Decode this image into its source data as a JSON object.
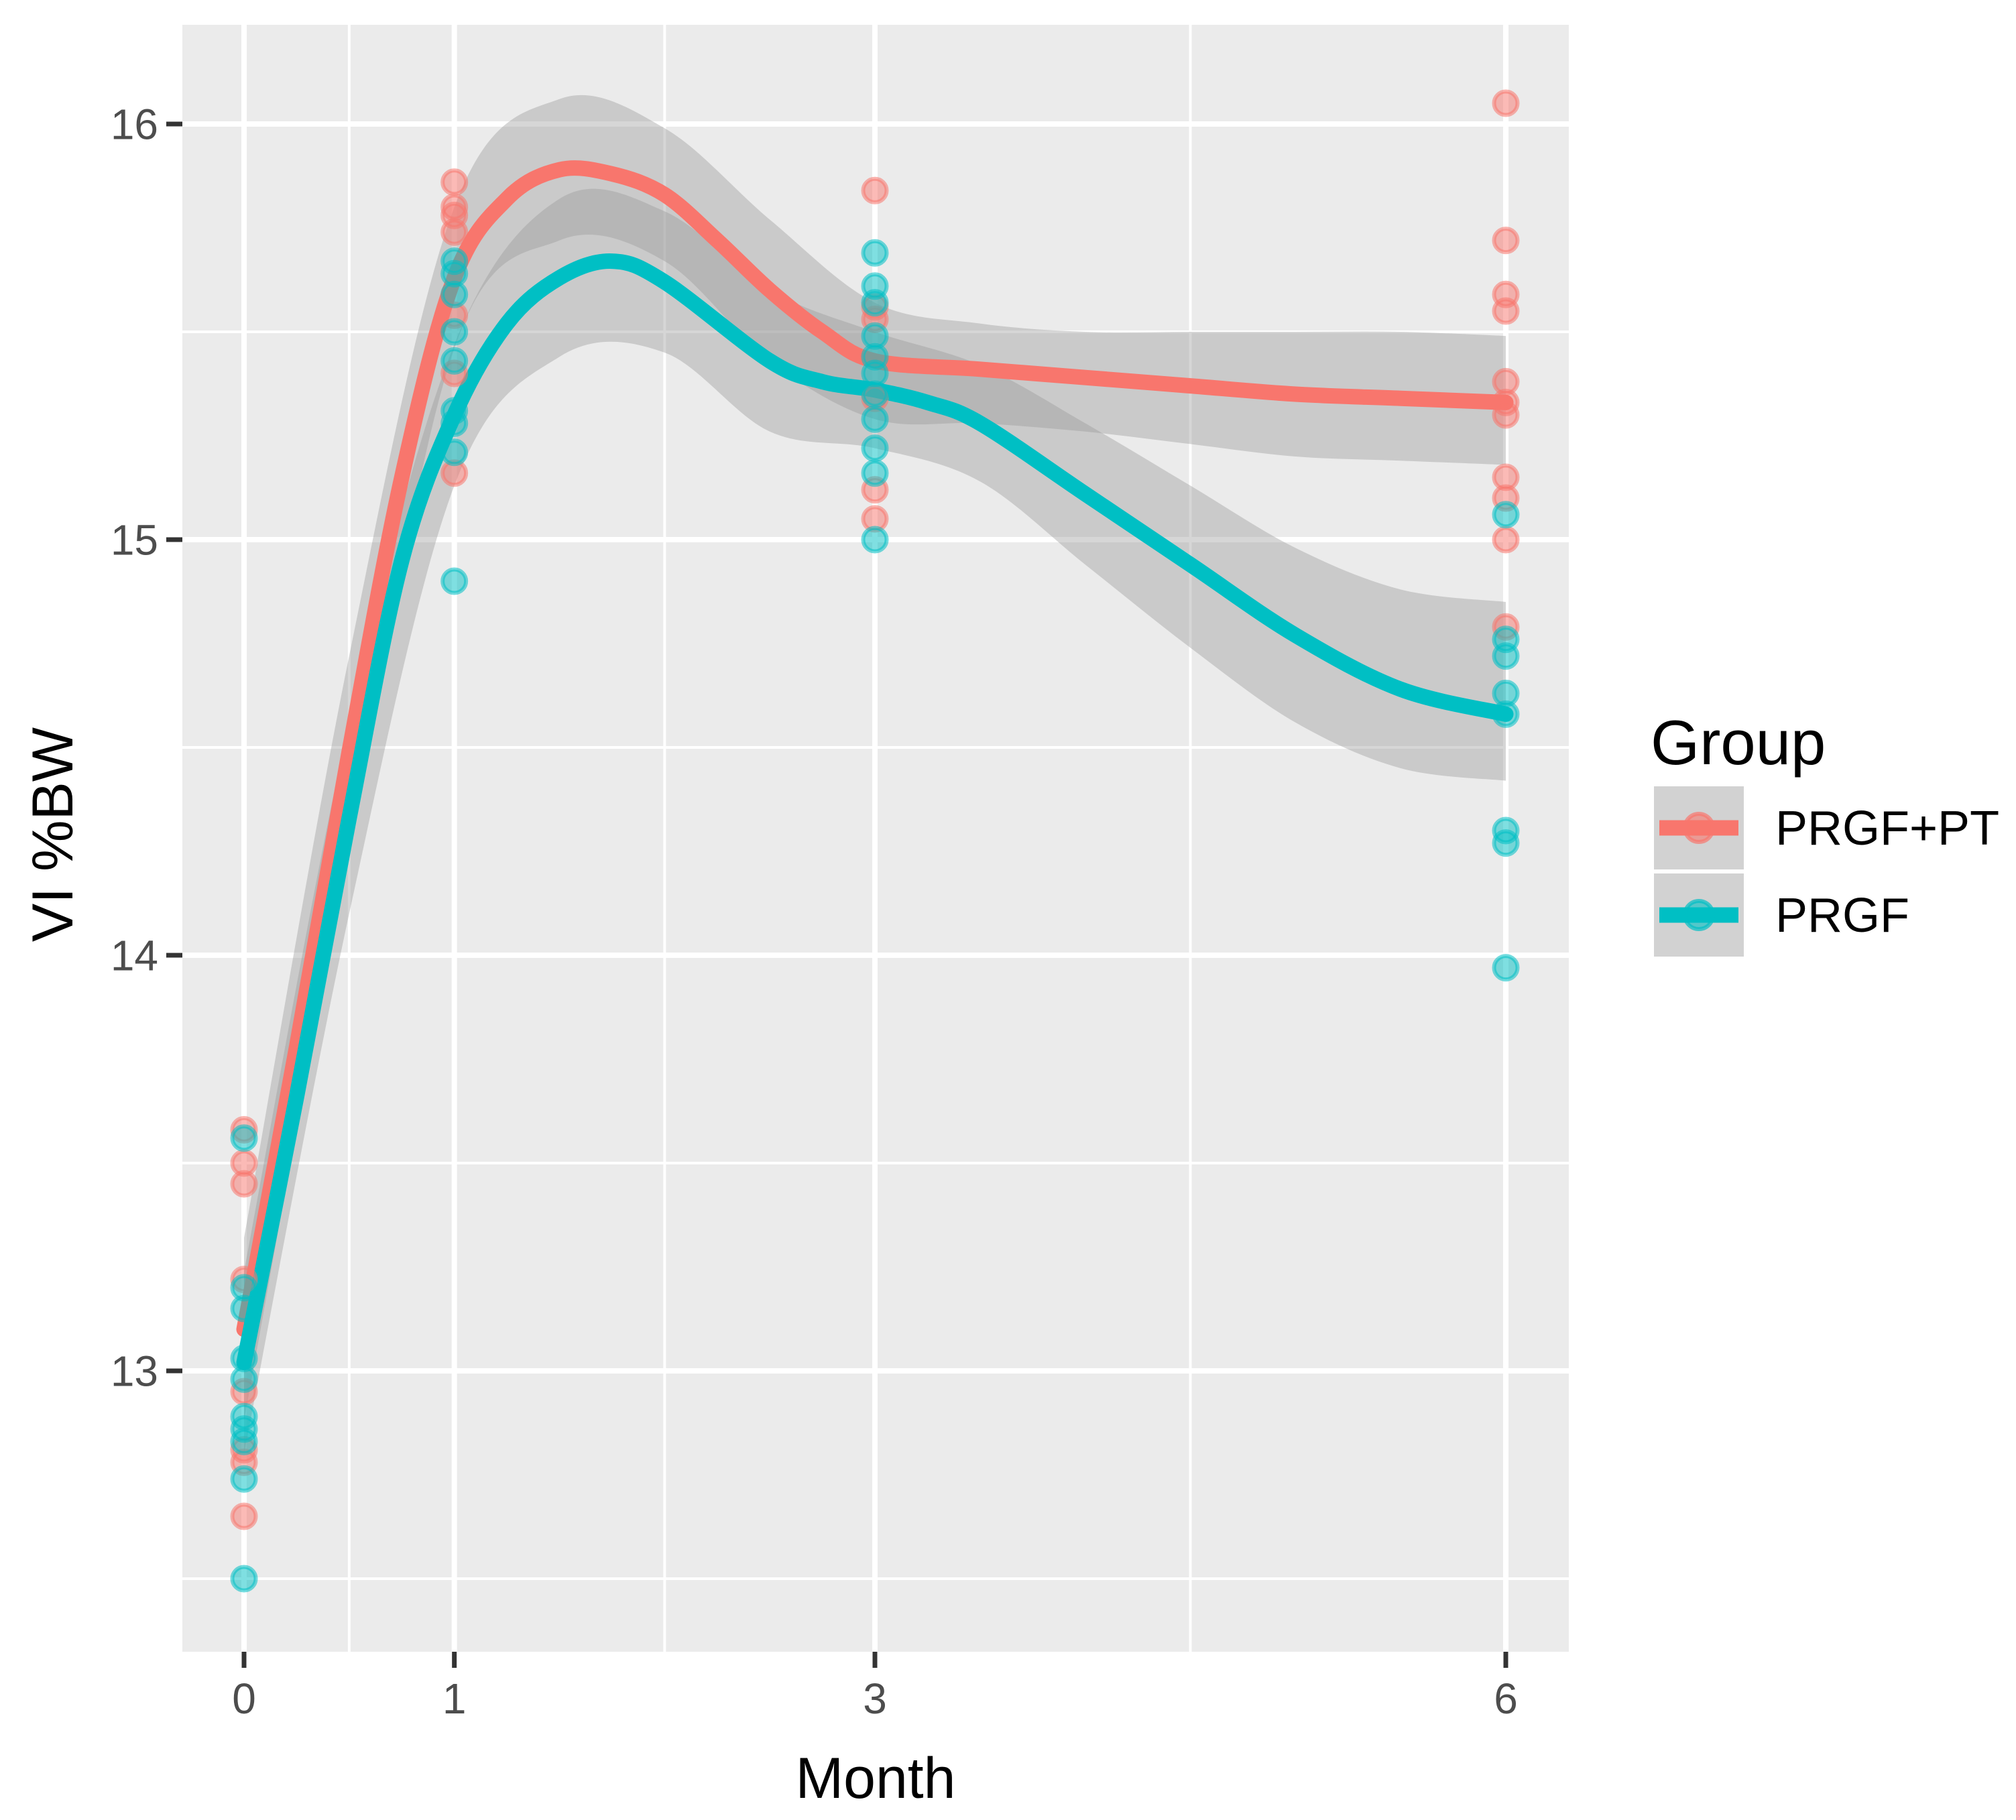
{
  "figure": {
    "background": "#FFFFFF",
    "panel_background": "#EBEBEB",
    "grid_color": "#FFFFFF",
    "tick_mark_color": "#333333",
    "tick_label_color": "#4D4D4D",
    "ribbon_color": "#999999"
  },
  "legend": {
    "title": "Group",
    "items": [
      {
        "label": "PRGF+PT",
        "color": "#F8766D"
      },
      {
        "label": "PRGF",
        "color": "#00BFC4"
      }
    ]
  },
  "chart_data": {
    "type": "scatter",
    "subtype": "jittered points with loess smooth lines and confidence ribbons",
    "title": "",
    "xlabel": "Month",
    "ylabel": "VI %BW",
    "x_ticks": [
      0,
      1,
      3,
      6
    ],
    "x_minor_ticks": [
      0.5,
      2,
      4.5
    ],
    "y_ticks": [
      13,
      14,
      15,
      16
    ],
    "y_minor_ticks": [
      12.5,
      13.5,
      14.5,
      15.5
    ],
    "xlim": [
      -0.29,
      6.3
    ],
    "ylim": [
      12.32,
      16.24
    ],
    "grid": "on",
    "legend_position": "right",
    "series": [
      {
        "name": "PRGF+PT",
        "color": "#F8766D",
        "points": [
          [
            0,
            13.58
          ],
          [
            0,
            13.5
          ],
          [
            0,
            13.45
          ],
          [
            0,
            13.22
          ],
          [
            0,
            12.95
          ],
          [
            0,
            12.81
          ],
          [
            0,
            12.78
          ],
          [
            0,
            12.65
          ],
          [
            1,
            15.86
          ],
          [
            1,
            15.8
          ],
          [
            1,
            15.78
          ],
          [
            1,
            15.74
          ],
          [
            1,
            15.54
          ],
          [
            1,
            15.4
          ],
          [
            1,
            15.16
          ],
          [
            3,
            15.84
          ],
          [
            3,
            15.56
          ],
          [
            3,
            15.53
          ],
          [
            3,
            15.34
          ],
          [
            3,
            15.12
          ],
          [
            3,
            15.05
          ],
          [
            6,
            16.05
          ],
          [
            6,
            15.72
          ],
          [
            6,
            15.59
          ],
          [
            6,
            15.55
          ],
          [
            6,
            15.38
          ],
          [
            6,
            15.33
          ],
          [
            6,
            15.3
          ],
          [
            6,
            15.15
          ],
          [
            6,
            15.1
          ],
          [
            6,
            15.0
          ],
          [
            6,
            14.79
          ]
        ],
        "smooth": [
          [
            0,
            13.1
          ],
          [
            0.25,
            13.78
          ],
          [
            0.5,
            14.49
          ],
          [
            0.75,
            15.15
          ],
          [
            1,
            15.63
          ],
          [
            1.25,
            15.82
          ],
          [
            1.5,
            15.89
          ],
          [
            1.75,
            15.88
          ],
          [
            2,
            15.83
          ],
          [
            2.25,
            15.72
          ],
          [
            2.5,
            15.6
          ],
          [
            2.75,
            15.5
          ],
          [
            3,
            15.43
          ],
          [
            3.5,
            15.41
          ],
          [
            4,
            15.39
          ],
          [
            4.5,
            15.37
          ],
          [
            5,
            15.35
          ],
          [
            5.5,
            15.34
          ],
          [
            6,
            15.33
          ]
        ],
        "ribbon_upper": [
          [
            0,
            13.32
          ],
          [
            0.5,
            14.72
          ],
          [
            1,
            15.8
          ],
          [
            1.5,
            16.06
          ],
          [
            2,
            15.99
          ],
          [
            2.5,
            15.77
          ],
          [
            3,
            15.57
          ],
          [
            3.5,
            15.52
          ],
          [
            4,
            15.5
          ],
          [
            4.5,
            15.5
          ],
          [
            5,
            15.5
          ],
          [
            5.5,
            15.5
          ],
          [
            6,
            15.49
          ]
        ],
        "ribbon_lower": [
          [
            0,
            12.88
          ],
          [
            0.5,
            14.26
          ],
          [
            1,
            15.46
          ],
          [
            1.5,
            15.72
          ],
          [
            2,
            15.67
          ],
          [
            2.5,
            15.43
          ],
          [
            3,
            15.29
          ],
          [
            3.5,
            15.28
          ],
          [
            4,
            15.26
          ],
          [
            4.5,
            15.23
          ],
          [
            5,
            15.2
          ],
          [
            5.5,
            15.19
          ],
          [
            6,
            15.18
          ]
        ]
      },
      {
        "name": "PRGF",
        "color": "#00BFC4",
        "points": [
          [
            0,
            13.56
          ],
          [
            0,
            13.2
          ],
          [
            0,
            13.15
          ],
          [
            0,
            13.03
          ],
          [
            0,
            12.98
          ],
          [
            0,
            12.89
          ],
          [
            0,
            12.86
          ],
          [
            0,
            12.83
          ],
          [
            0,
            12.74
          ],
          [
            0,
            12.5
          ],
          [
            1,
            15.67
          ],
          [
            1,
            15.64
          ],
          [
            1,
            15.59
          ],
          [
            1,
            15.5
          ],
          [
            1,
            15.43
          ],
          [
            1,
            15.31
          ],
          [
            1,
            15.28
          ],
          [
            1,
            15.21
          ],
          [
            1,
            14.9
          ],
          [
            3,
            15.69
          ],
          [
            3,
            15.61
          ],
          [
            3,
            15.57
          ],
          [
            3,
            15.49
          ],
          [
            3,
            15.44
          ],
          [
            3,
            15.4
          ],
          [
            3,
            15.35
          ],
          [
            3,
            15.29
          ],
          [
            3,
            15.22
          ],
          [
            3,
            15.16
          ],
          [
            3,
            15.0
          ],
          [
            6,
            15.06
          ],
          [
            6,
            14.76
          ],
          [
            6,
            14.72
          ],
          [
            6,
            14.63
          ],
          [
            6,
            14.58
          ],
          [
            6,
            14.3
          ],
          [
            6,
            14.27
          ],
          [
            6,
            13.97
          ]
        ],
        "smooth": [
          [
            0,
            13.02
          ],
          [
            0.25,
            13.66
          ],
          [
            0.5,
            14.33
          ],
          [
            0.75,
            14.95
          ],
          [
            1,
            15.3
          ],
          [
            1.25,
            15.52
          ],
          [
            1.5,
            15.63
          ],
          [
            1.75,
            15.67
          ],
          [
            2,
            15.62
          ],
          [
            2.5,
            15.43
          ],
          [
            2.75,
            15.38
          ],
          [
            3,
            15.36
          ],
          [
            3.25,
            15.33
          ],
          [
            3.5,
            15.28
          ],
          [
            4,
            15.11
          ],
          [
            4.5,
            14.94
          ],
          [
            5,
            14.77
          ],
          [
            5.5,
            14.64
          ],
          [
            6,
            14.58
          ]
        ],
        "ribbon_upper": [
          [
            0,
            13.24
          ],
          [
            0.5,
            14.56
          ],
          [
            1,
            15.47
          ],
          [
            1.5,
            15.82
          ],
          [
            2,
            15.79
          ],
          [
            2.5,
            15.6
          ],
          [
            3,
            15.5
          ],
          [
            3.5,
            15.42
          ],
          [
            4,
            15.28
          ],
          [
            4.5,
            15.13
          ],
          [
            5,
            14.98
          ],
          [
            5.5,
            14.88
          ],
          [
            6,
            14.85
          ]
        ],
        "ribbon_lower": [
          [
            0,
            12.8
          ],
          [
            0.5,
            14.1
          ],
          [
            1,
            15.13
          ],
          [
            1.5,
            15.44
          ],
          [
            2,
            15.45
          ],
          [
            2.5,
            15.26
          ],
          [
            3,
            15.22
          ],
          [
            3.5,
            15.14
          ],
          [
            4,
            14.94
          ],
          [
            4.5,
            14.74
          ],
          [
            5,
            14.56
          ],
          [
            5.5,
            14.45
          ],
          [
            6,
            14.42
          ]
        ]
      }
    ]
  }
}
